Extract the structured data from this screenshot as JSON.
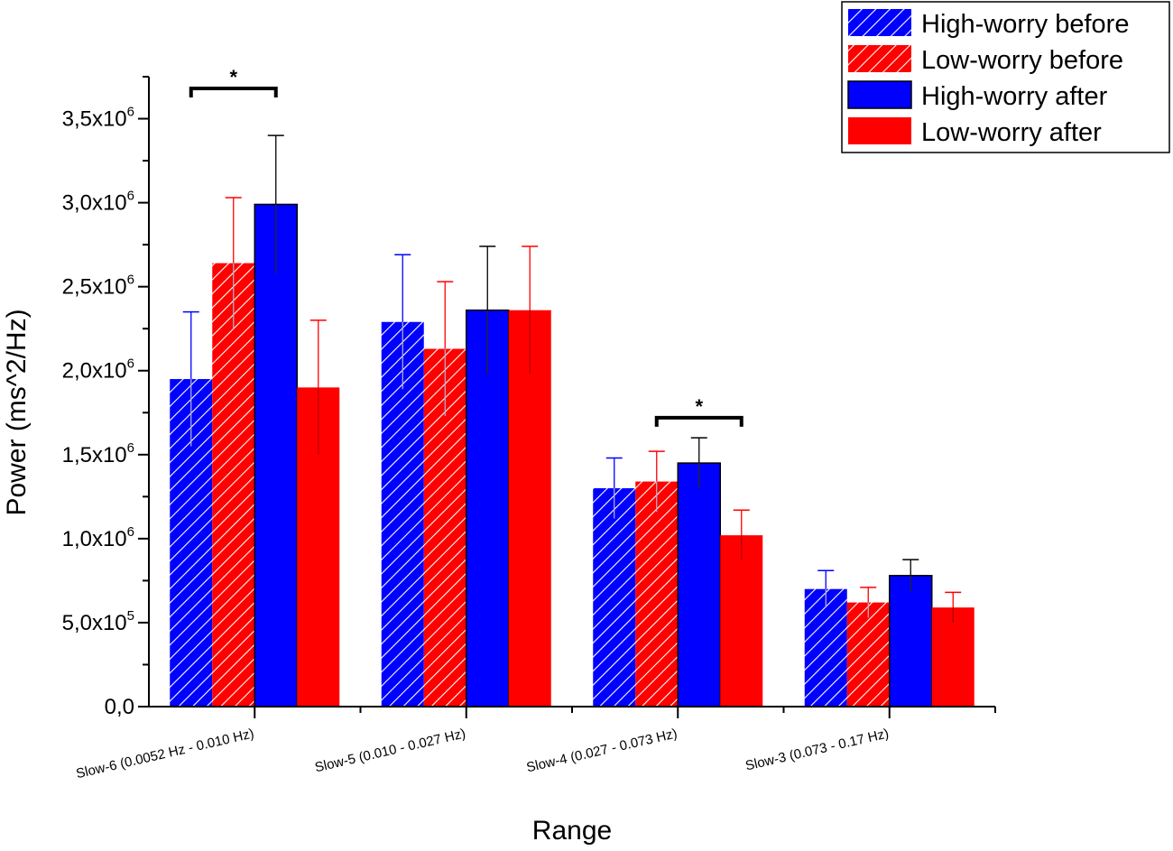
{
  "chart_data": {
    "type": "bar",
    "title": "",
    "xlabel": "Range",
    "ylabel": "Power (ms^2/Hz)",
    "ylim": [
      0,
      3750000
    ],
    "grid": false,
    "legend_position": "top-right",
    "categories": [
      "Slow-6 (0.0052 Hz - 0.010 Hz)",
      "Slow-5 (0.010 - 0.027 Hz)",
      "Slow-4 (0.027 - 0.073 Hz)",
      "Slow-3 (0.073 - 0.17 Hz)"
    ],
    "y_ticks": [
      {
        "value": 0,
        "mantissa": "0,0",
        "exp": ""
      },
      {
        "value": 500000,
        "mantissa": "5,0x10",
        "exp": "5"
      },
      {
        "value": 1000000,
        "mantissa": "1,0x10",
        "exp": "6"
      },
      {
        "value": 1500000,
        "mantissa": "1,5x10",
        "exp": "6"
      },
      {
        "value": 2000000,
        "mantissa": "2,0x10",
        "exp": "6"
      },
      {
        "value": 2500000,
        "mantissa": "2,5x10",
        "exp": "6"
      },
      {
        "value": 3000000,
        "mantissa": "3,0x10",
        "exp": "6"
      },
      {
        "value": 3500000,
        "mantissa": "3,5x10",
        "exp": "6"
      }
    ],
    "series": [
      {
        "name": "High-worry before",
        "color": "#0000ff",
        "hatched": true,
        "values": [
          1950000,
          2290000,
          1300000,
          700000
        ],
        "errors": [
          400000,
          400000,
          180000,
          110000
        ]
      },
      {
        "name": "Low-worry before",
        "color": "#ff0000",
        "hatched": true,
        "values": [
          2640000,
          2130000,
          1340000,
          620000
        ],
        "errors": [
          390000,
          400000,
          180000,
          90000
        ]
      },
      {
        "name": "High-worry after",
        "color": "#0000ff",
        "hatched": false,
        "values": [
          2990000,
          2360000,
          1450000,
          780000
        ],
        "errors": [
          410000,
          380000,
          150000,
          95000
        ]
      },
      {
        "name": "Low-worry after",
        "color": "#ff0000",
        "hatched": false,
        "values": [
          1900000,
          2360000,
          1020000,
          590000
        ],
        "errors": [
          400000,
          380000,
          150000,
          90000
        ]
      }
    ],
    "significance": [
      {
        "category_index": 0,
        "from_series": 0,
        "to_series": 2,
        "label": "*",
        "value": 3680000
      },
      {
        "category_index": 2,
        "from_series": 1,
        "to_series": 3,
        "label": "*",
        "value": 1720000
      }
    ]
  }
}
